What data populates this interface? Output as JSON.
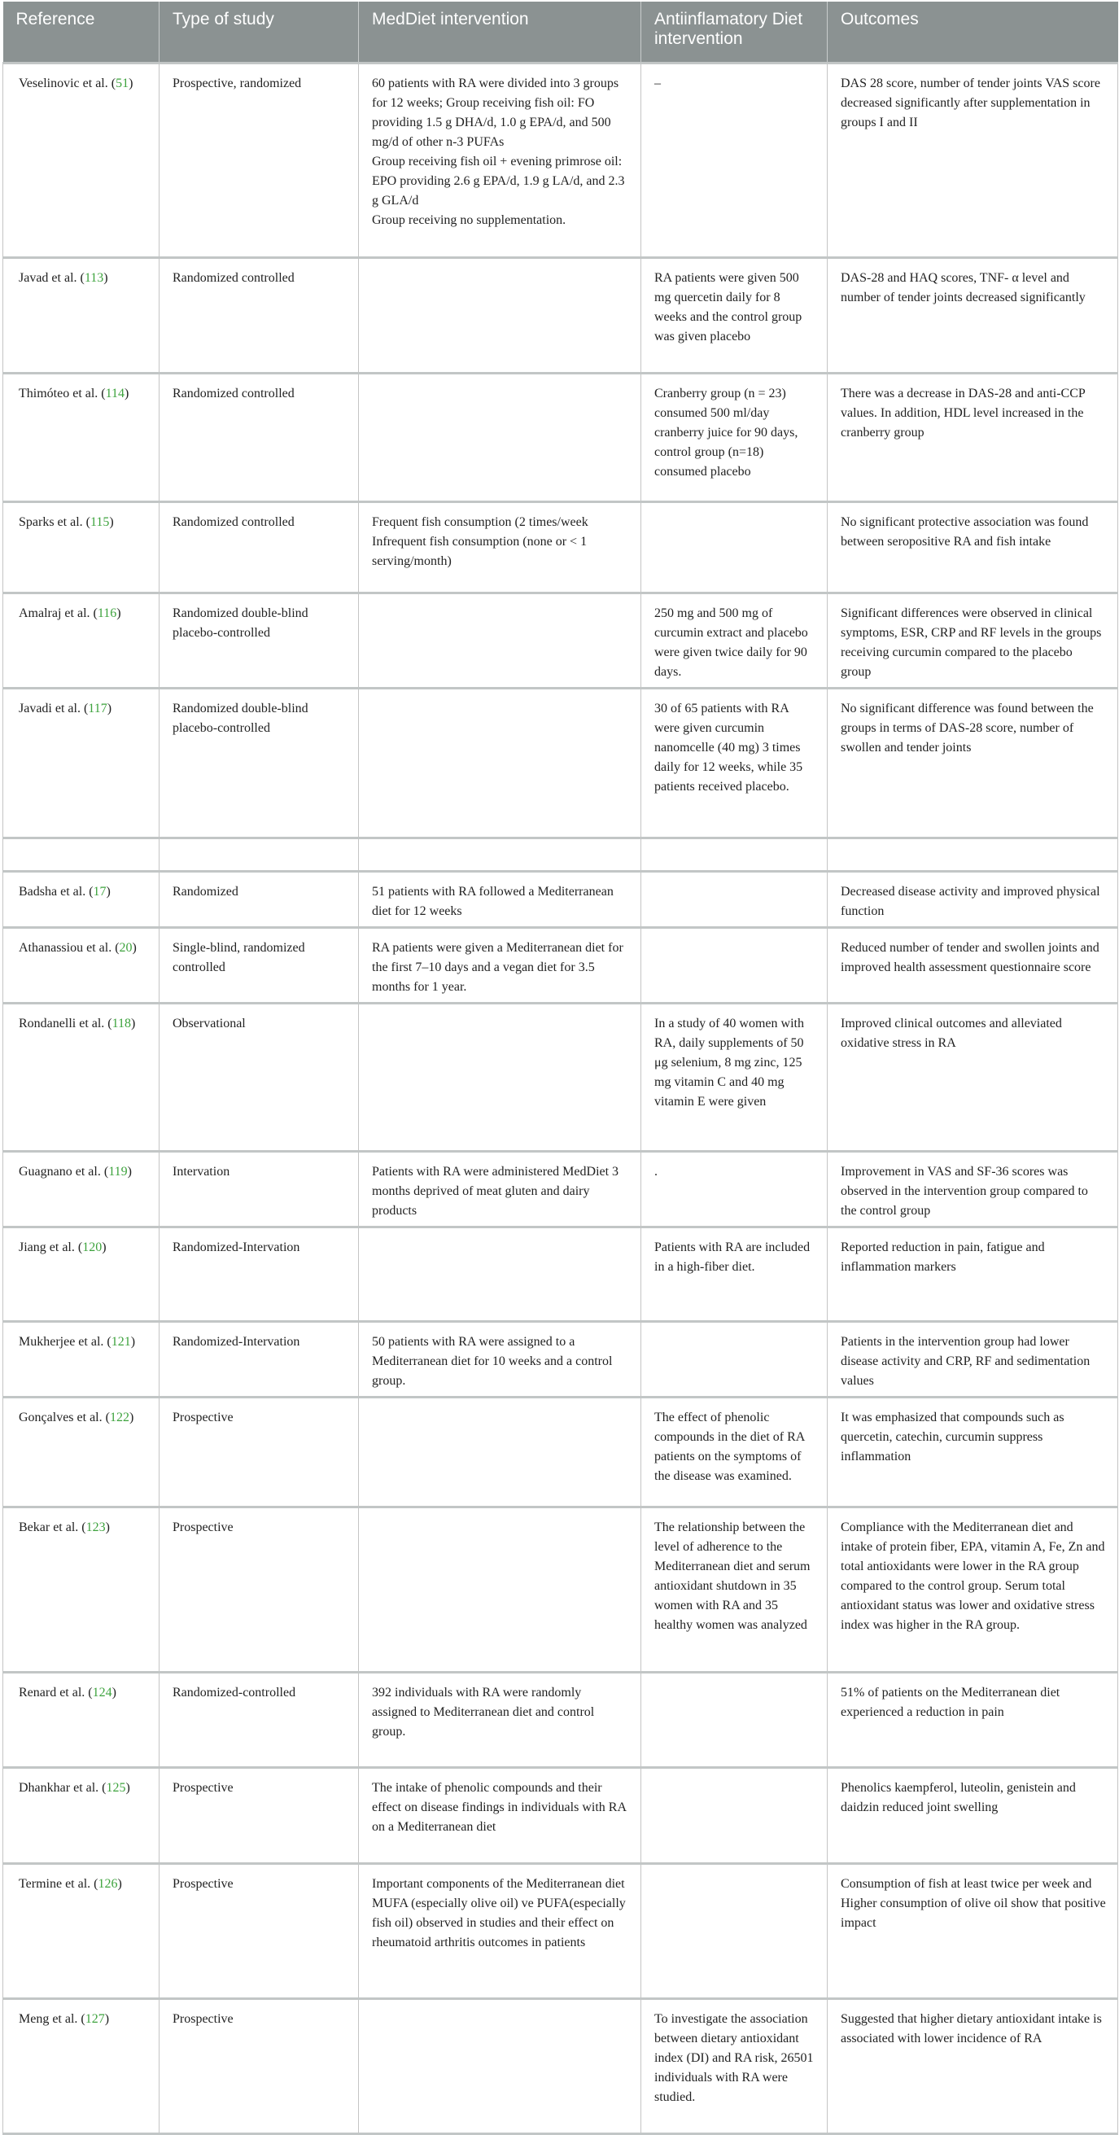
{
  "table": {
    "headers": [
      "Reference",
      "Type of study",
      "MedDiet intervention",
      "Antiinflamatory Diet intervention",
      "Outcomes"
    ],
    "link_color": "#3ea33e",
    "header_bg": "#8b9292",
    "rows": [
      {
        "ref": "Veselinovic et al. (",
        "num": "51",
        "type": "Prospective, randomized",
        "med": "60 patients with RA were divided into 3 groups for 12 weeks; Group receiving fish oil: FO providing 1.5 g DHA/d, 1.0 g EPA/d, and 500 mg/d of other n-3 PUFAs\nGroup receiving fish oil + evening primrose oil: EPO providing 2.6 g EPA/d, 1.9 g LA/d, and 2.3 g GLA/d\nGroup receiving no supplementation.",
        "anti": "–",
        "out": "DAS 28 score, number of tender joints VAS score decreased significantly after supplementation in groups I and II"
      },
      {
        "ref": "Javad et al. (",
        "num": "113",
        "type": "Randomized controlled",
        "med": "",
        "anti": "RA patients were given 500 mg quercetin daily for 8 weeks and the control group was given placebo",
        "out": "DAS-28 and HAQ scores, TNF- α level and number of tender joints decreased significantly"
      },
      {
        "ref": "Thimóteo et al. (",
        "num": "114",
        "type": "Randomized controlled",
        "med": "",
        "anti": "Cranberry group (n = 23) consumed 500 ml/day cranberry juice for 90 days, control group (n=18) consumed placebo",
        "out": "There was a decrease in DAS-28 and anti-CCP values. In addition, HDL level increased in the cranberry group"
      },
      {
        "ref": "Sparks et al. (",
        "num": "115",
        "type": "Randomized controlled",
        "med": "Frequent fish consumption (2 times/week\nInfrequent fish consumption (none or < 1 serving/month)",
        "anti": "",
        "out": "No significant protective association was found between seropositive RA and fish intake"
      },
      {
        "ref": "Amalraj et al. (",
        "num": "116",
        "type": "Randomized double-blind placebo-controlled",
        "med": "",
        "anti": "250 mg and 500 mg of curcumin extract and placebo were given twice daily for 90 days.",
        "out": "Significant differences were observed in clinical symptoms, ESR, CRP and RF levels in the groups receiving curcumin compared to the placebo group"
      },
      {
        "ref": "Javadi et al. (",
        "num": "117",
        "type": "Randomized double-blind placebo-controlled",
        "med": "",
        "anti": "30 of 65 patients with RA were given curcumin nanomcelle (40 mg) 3 times daily for 12 weeks, while 35 patients received placebo.",
        "out": "No significant difference was found between the groups in terms of DAS-28 score, number of swollen and tender joints"
      },
      {
        "ref": "",
        "num": "",
        "type": "",
        "med": "",
        "anti": "",
        "out": ""
      },
      {
        "ref": "Badsha et al. (",
        "num": "17",
        "type": "Randomized",
        "med": "51 patients with RA followed a Mediterranean diet for 12 weeks",
        "anti": "",
        "out": "Decreased disease activity and improved physical function"
      },
      {
        "ref": "Athanassiou et al. (",
        "num": "20",
        "type": "Single-blind, randomized controlled",
        "med": "RA patients were given a Mediterranean diet for the first 7–10 days and a vegan diet for 3.5 months for 1 year.",
        "anti": "",
        "out": "Reduced number of tender and swollen joints and improved health assessment questionnaire score"
      },
      {
        "ref": "Rondanelli et al. (",
        "num": "118",
        "type": "Observational",
        "med": "",
        "anti": "In a study of 40 women with RA, daily supplements of 50 μg selenium, 8 mg zinc, 125 mg vitamin C and 40 mg vitamin E were given",
        "out": "Improved clinical outcomes and alleviated oxidative stress in RA"
      },
      {
        "ref": "Guagnano et al. (",
        "num": "119",
        "type": "Intervation",
        "med": "Patients with RA were administered MedDiet 3 months deprived of meat gluten and dairy products",
        "anti": ".",
        "out": "Improvement in VAS and SF-36 scores was observed in the intervention group compared to the control group"
      },
      {
        "ref": "Jiang et al. (",
        "num": "120",
        "type": "Randomized-Intervation",
        "med": "",
        "anti": "Patients with RA are included in a high-fiber diet.",
        "out": "Reported reduction in pain, fatigue and inflammation markers"
      },
      {
        "ref": "Mukherjee et al. (",
        "num": "121",
        "type": "Randomized-Intervation",
        "med": "50 patients with RA were assigned to a Mediterranean diet for 10 weeks and a control group.",
        "anti": "",
        "out": "Patients in the intervention group had lower disease activity and CRP, RF and sedimentation values"
      },
      {
        "ref": "Gonçalves et al. (",
        "num": "122",
        "type": "Prospective",
        "med": "",
        "anti": "The effect of phenolic compounds in the diet of RA patients on the symptoms of the disease was examined.",
        "out": "It was emphasized that compounds such as quercetin, catechin, curcumin suppress inflammation"
      },
      {
        "ref": "Bekar et al. (",
        "num": "123",
        "type": "Prospective",
        "med": "",
        "anti": "The relationship between the level of adherence to the Mediterranean diet and serum antioxidant shutdown in 35 women with RA and 35 healthy women was analyzed",
        "out": "Compliance with the Mediterranean diet and intake of protein fiber, EPA, vitamin A, Fe, Zn and total antioxidants were lower in the RA group compared to the control group. Serum total antioxidant status was lower and oxidative stress index was higher in the RA group."
      },
      {
        "ref": "Renard et al. (",
        "num": "124",
        "type": "Randomized-controlled",
        "med": "392 individuals with RA were randomly assigned to Mediterranean diet and control group.",
        "anti": "",
        "out": "51% of patients on the Mediterranean diet experienced a reduction in pain"
      },
      {
        "ref": "Dhankhar et al. (",
        "num": "125",
        "type": "Prospective",
        "med": "The intake of phenolic compounds and their effect on disease findings in individuals with RA on a Mediterranean diet",
        "anti": "",
        "out": "Phenolics kaempferol, luteolin, genistein and daidzin reduced joint swelling"
      },
      {
        "ref": "Termine et al. (",
        "num": "126",
        "type": "Prospective",
        "med": "Important components of the Mediterranean diet MUFA (especially olive oil) ve PUFA(especially fish oil) observed in studies and their effect on rheumatoid arthritis outcomes in patients",
        "anti": "",
        "out": "Consumption of fish at least twice per week and Higher consumption of olive oil show that positive impact"
      },
      {
        "ref": "Meng et al. (",
        "num": "127",
        "type": "Prospective",
        "med": "",
        "anti": "To investigate the association between dietary antioxidant index (DI) and RA risk, 26501 individuals with RA were studied.",
        "out": "Suggested that higher dietary antioxidant intake is associated with lower incidence of RA"
      }
    ]
  }
}
